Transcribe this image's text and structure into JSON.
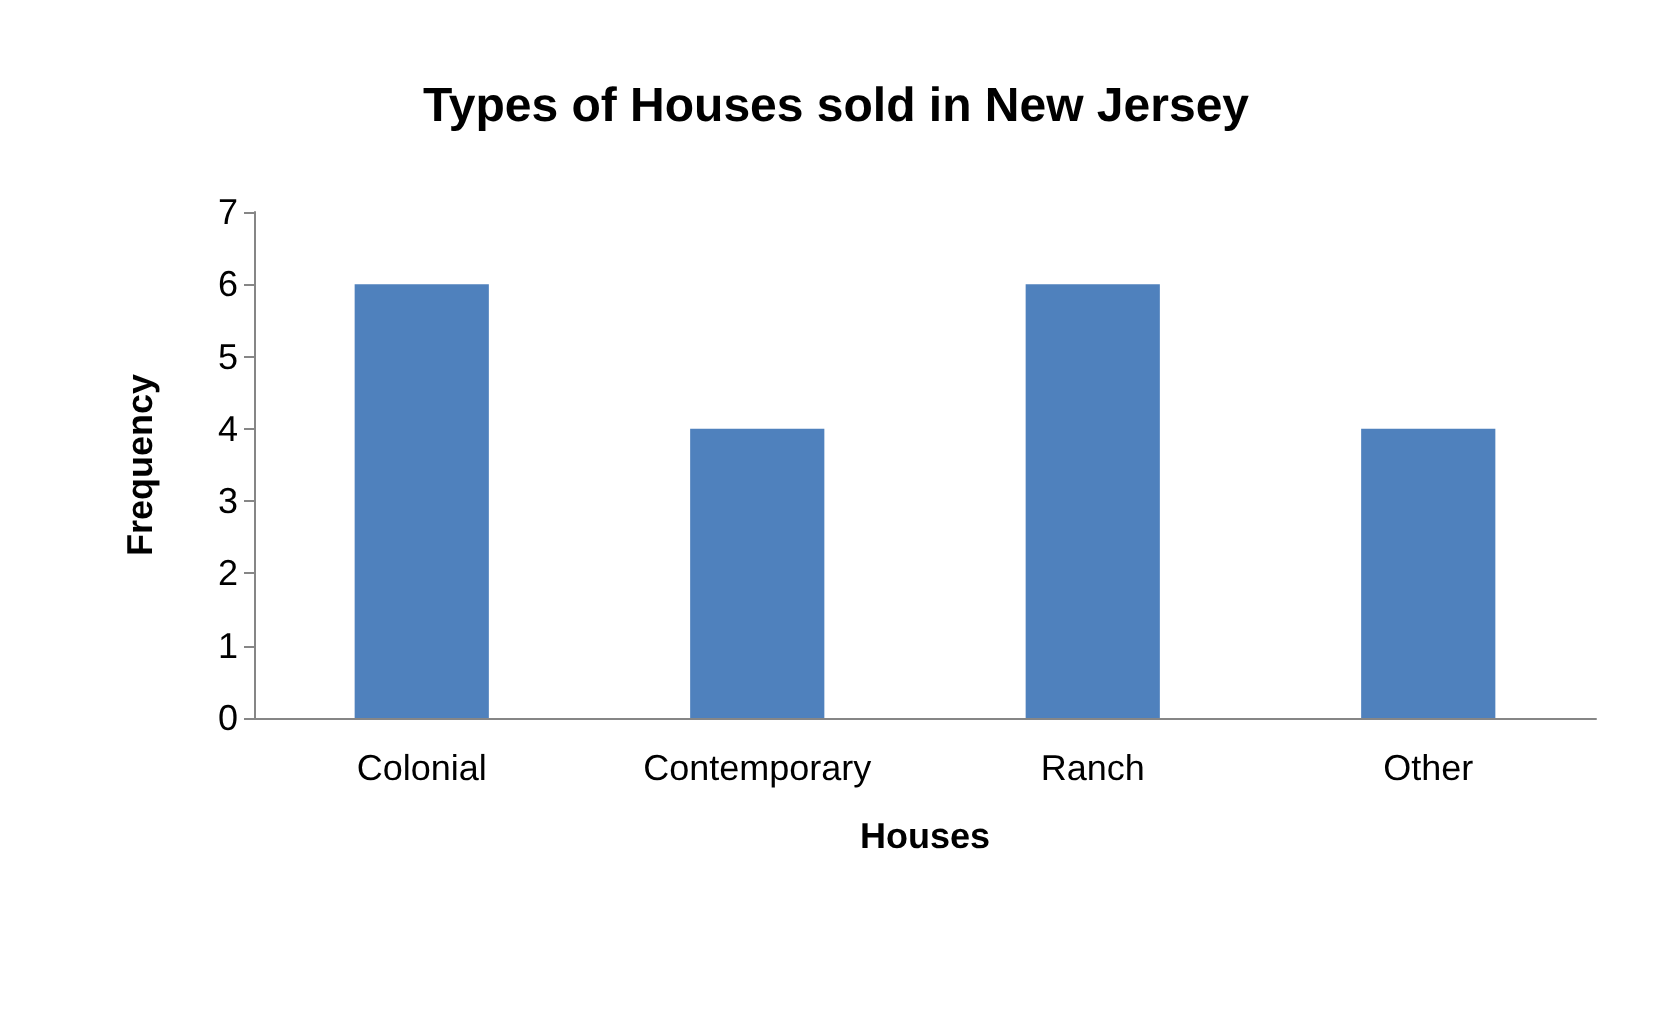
{
  "chart_data": {
    "type": "bar",
    "title": "Types of Houses sold in New Jersey",
    "xlabel": "Houses",
    "ylabel": "Frequency",
    "categories": [
      "Colonial",
      "Contemporary",
      "Ranch",
      "Other"
    ],
    "values": [
      6,
      4,
      6,
      4
    ],
    "color": "#4f81bd",
    "ylim": [
      0,
      7
    ],
    "yticks": [
      0,
      1,
      2,
      3,
      4,
      5,
      6,
      7
    ],
    "grid": false
  }
}
